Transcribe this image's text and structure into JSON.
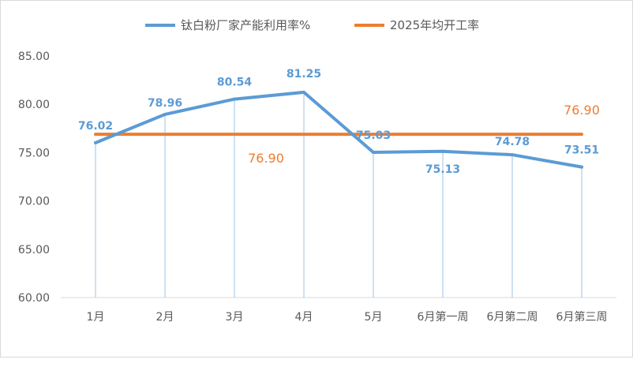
{
  "chart_data": {
    "type": "line",
    "categories": [
      "1月",
      "2月",
      "3月",
      "4月",
      "5月",
      "6月第一周",
      "6月第二周",
      "6月第三周"
    ],
    "series": [
      {
        "name": "钛白粉厂家产能利用率%",
        "values": [
          76.02,
          78.96,
          80.54,
          81.25,
          75.03,
          75.13,
          74.78,
          73.51
        ],
        "labels": [
          "76.02",
          "78.96",
          "80.54",
          "81.25",
          "75.03",
          "75.13",
          "74.78",
          "73.51"
        ],
        "color": "#5b9bd5",
        "drop_lines": true
      },
      {
        "name": "2025年均开工率",
        "values": [
          76.9,
          76.9,
          76.9,
          76.9,
          76.9,
          76.9,
          76.9,
          76.9
        ],
        "annotations": [
          "76.90",
          "76.90"
        ],
        "color": "#ed7d31"
      }
    ],
    "y_ticks": [
      "60.00",
      "65.00",
      "70.00",
      "75.00",
      "80.00",
      "85.00"
    ],
    "ylim": [
      60,
      85
    ],
    "grid": false,
    "legend": "top-center"
  }
}
